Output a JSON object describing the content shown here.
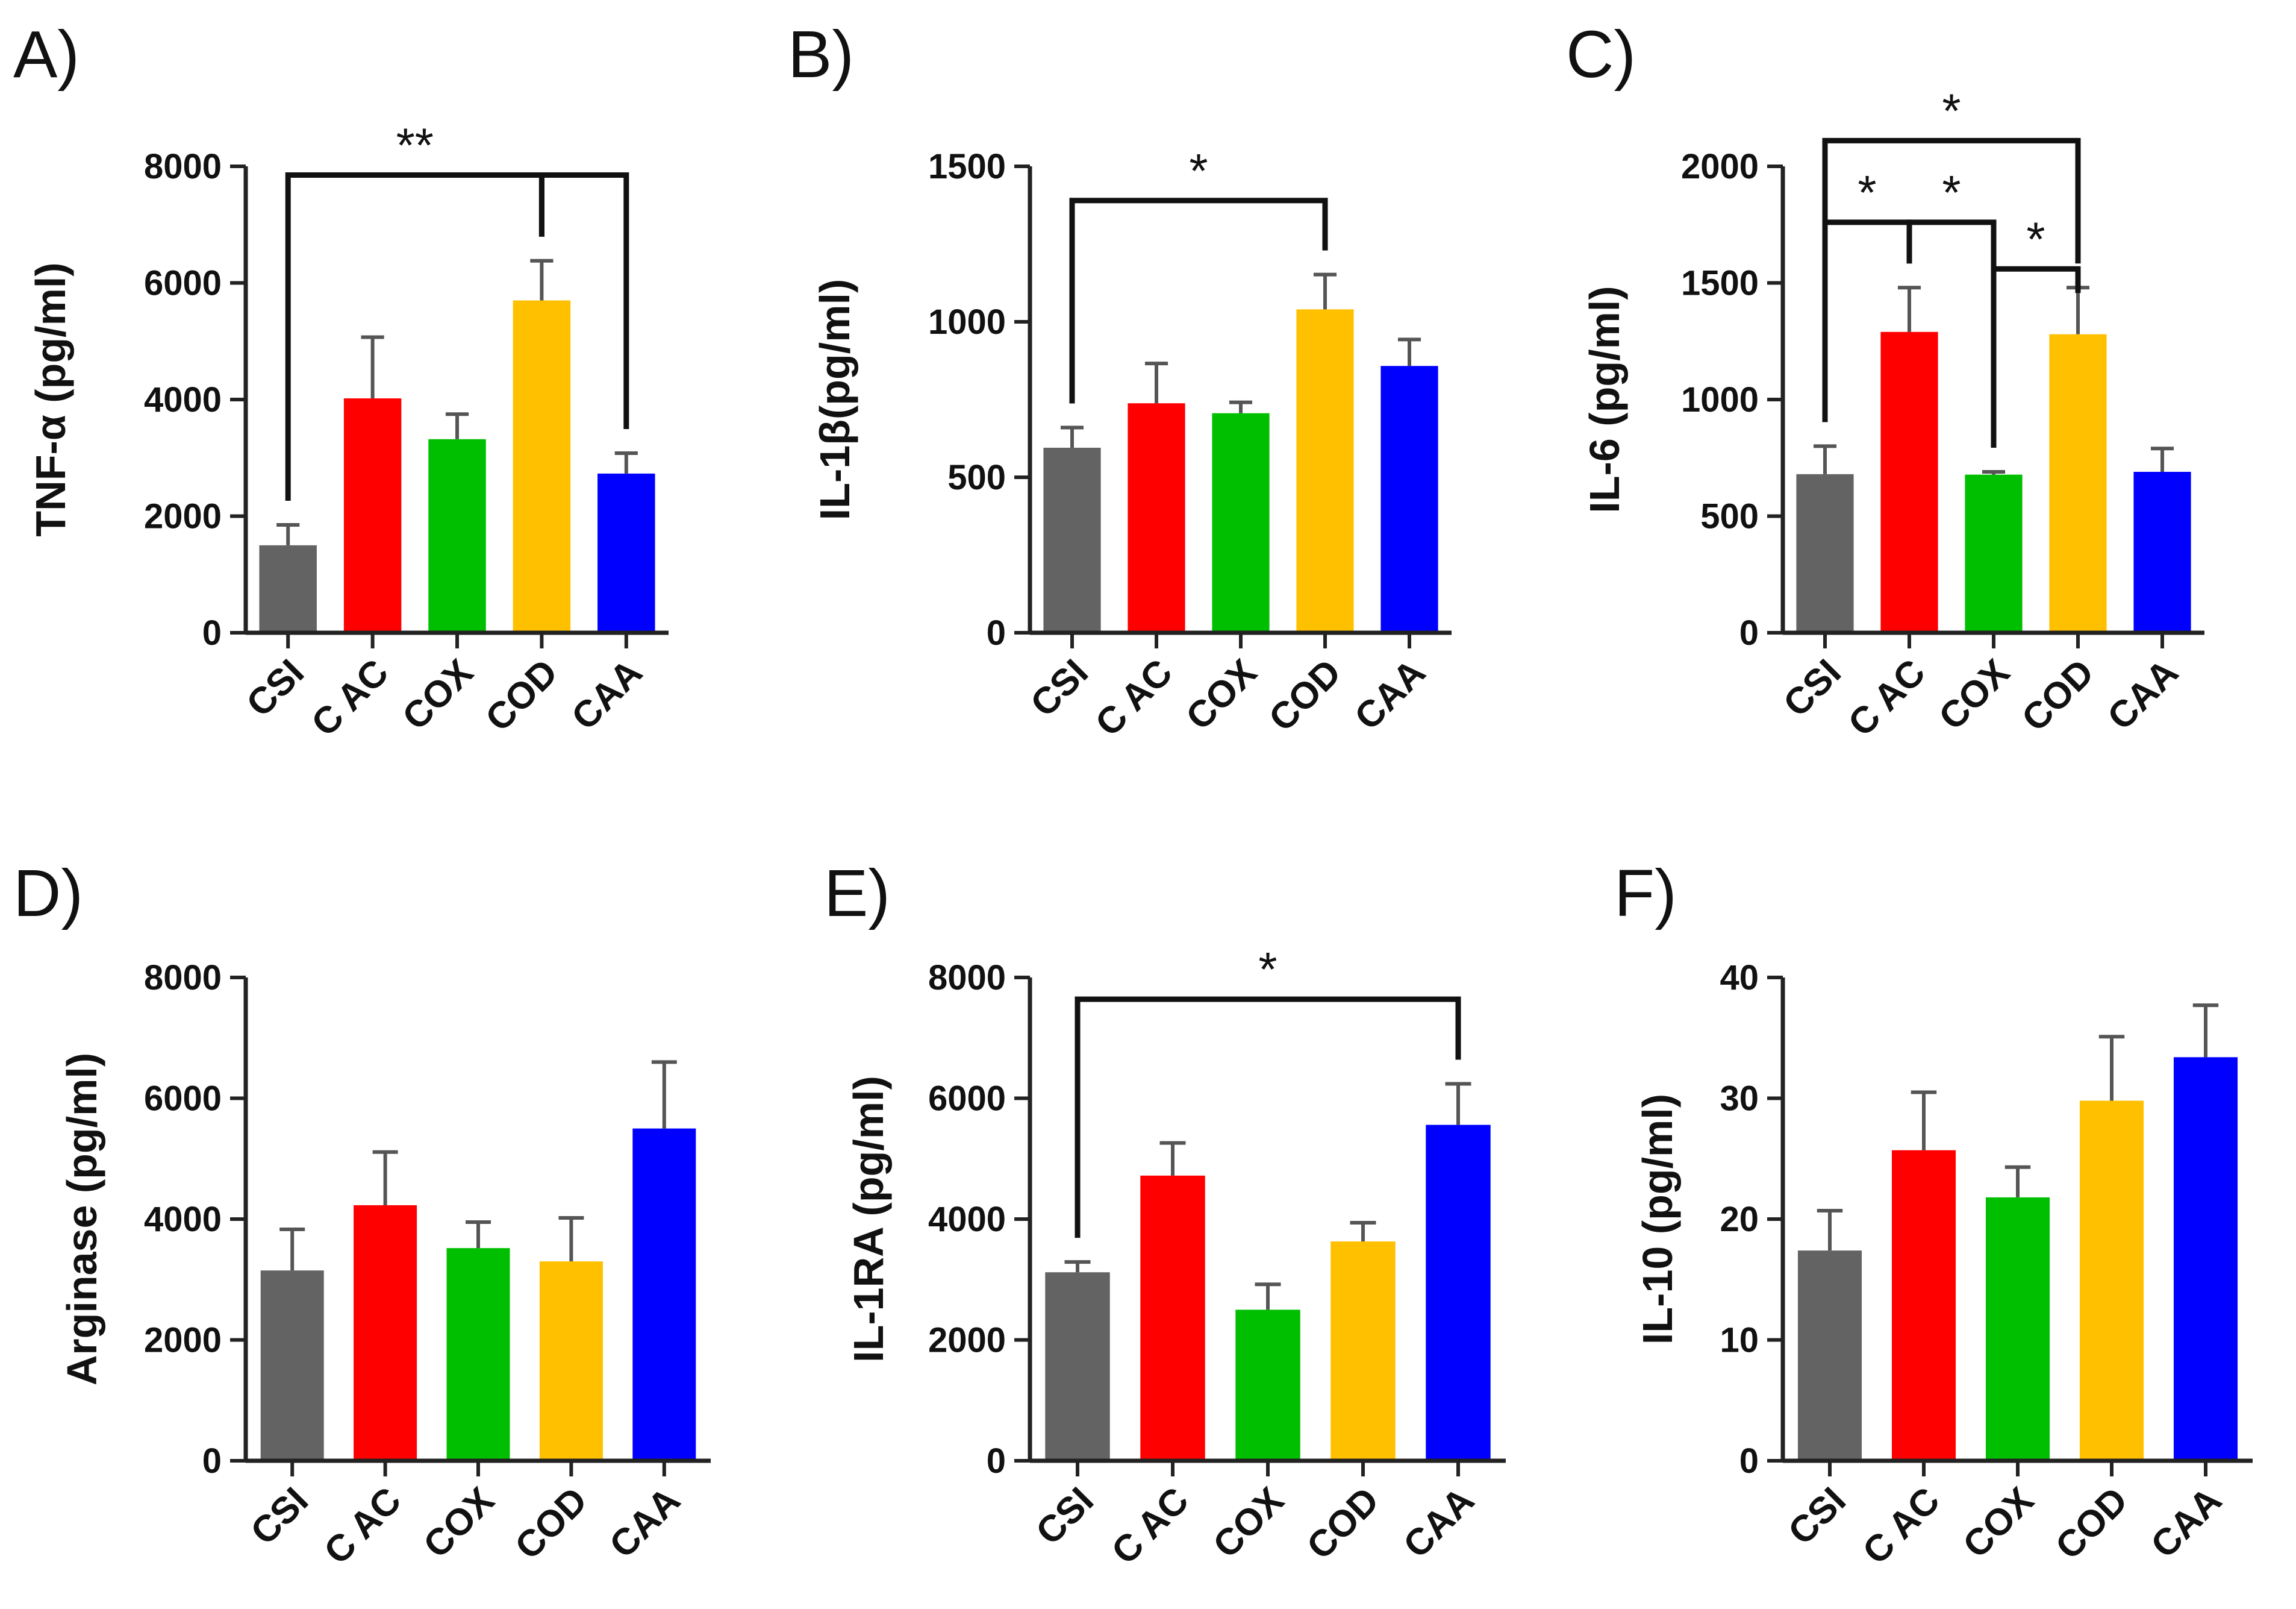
{
  "chart_data": [
    {
      "panel": "A)",
      "type": "bar",
      "ylabel": "TNF-α (pg/ml)",
      "ylim": [
        0,
        8000
      ],
      "yticks": [
        0,
        2000,
        4000,
        6000,
        8000
      ],
      "categories": [
        "CSI",
        "C AC",
        "COX",
        "COD",
        "CAA"
      ],
      "values": [
        1500,
        4020,
        3320,
        5700,
        2730
      ],
      "errors": [
        350,
        1050,
        430,
        680,
        350
      ],
      "colors": [
        "#636363",
        "#ff0000",
        "#00bf00",
        "#ffc000",
        "#0000ff"
      ],
      "significance": [
        {
          "from": 0,
          "to": 3,
          "label": "**",
          "level": 7850
        },
        {
          "from": 3,
          "to": 4,
          "label": "",
          "level": 7850
        }
      ]
    },
    {
      "panel": "B)",
      "type": "bar",
      "ylabel": "IL-1β(pg/ml)",
      "ylim": [
        0,
        1500
      ],
      "yticks": [
        0,
        500,
        1000,
        1500
      ],
      "categories": [
        "CSI",
        "C AC",
        "COX",
        "COD",
        "CAA"
      ],
      "values": [
        595,
        738,
        706,
        1040,
        858
      ],
      "errors": [
        65,
        128,
        35,
        112,
        85
      ],
      "colors": [
        "#636363",
        "#ff0000",
        "#00bf00",
        "#ffc000",
        "#0000ff"
      ],
      "significance": [
        {
          "from": 0,
          "to": 3,
          "label": "*",
          "level": 1390
        }
      ]
    },
    {
      "panel": "C)",
      "type": "bar",
      "ylabel": "IL-6 (pg/ml)",
      "ylim": [
        0,
        2000
      ],
      "yticks": [
        0,
        500,
        1000,
        1500,
        2000
      ],
      "categories": [
        "CSI",
        "C AC",
        "COX",
        "COD",
        "CAA"
      ],
      "values": [
        680,
        1290,
        678,
        1280,
        690
      ],
      "errors": [
        120,
        190,
        12,
        200,
        100
      ],
      "colors": [
        "#636363",
        "#ff0000",
        "#00bf00",
        "#ffc000",
        "#0000ff"
      ],
      "significance": [
        {
          "from": 0,
          "to": 3,
          "label": "*",
          "level": 2110
        },
        {
          "from": 0,
          "to": 1,
          "label": "*",
          "level": 1760
        },
        {
          "from": 1,
          "to": 2,
          "label": "*",
          "level": 1760
        },
        {
          "from": 2,
          "to": 3,
          "label": "*",
          "level": 1560
        }
      ]
    },
    {
      "panel": "D)",
      "type": "bar",
      "ylabel": "Arginase (pg/ml)",
      "ylim": [
        0,
        8000
      ],
      "yticks": [
        0,
        2000,
        4000,
        6000,
        8000
      ],
      "categories": [
        "CSI",
        "C AC",
        "COX",
        "COD",
        "CAA"
      ],
      "values": [
        3150,
        4230,
        3520,
        3300,
        5500
      ],
      "errors": [
        680,
        880,
        430,
        720,
        1100
      ],
      "colors": [
        "#636363",
        "#ff0000",
        "#00bf00",
        "#ffc000",
        "#0000ff"
      ],
      "significance": []
    },
    {
      "panel": "E)",
      "type": "bar",
      "ylabel": "IL-1RA (pg/ml)",
      "ylim": [
        0,
        8000
      ],
      "yticks": [
        0,
        2000,
        4000,
        6000,
        8000
      ],
      "categories": [
        "CSI",
        "C AC",
        "COX",
        "COD",
        "CAA"
      ],
      "values": [
        3120,
        4720,
        2500,
        3630,
        5560
      ],
      "errors": [
        170,
        540,
        420,
        310,
        680
      ],
      "colors": [
        "#636363",
        "#ff0000",
        "#00bf00",
        "#ffc000",
        "#0000ff"
      ],
      "significance": [
        {
          "from": 0,
          "to": 4,
          "label": "*",
          "level": 7640
        }
      ]
    },
    {
      "panel": "F)",
      "type": "bar",
      "ylabel": "IL-10 (pg/ml)",
      "ylim": [
        0,
        40
      ],
      "yticks": [
        0,
        10,
        20,
        30,
        40
      ],
      "categories": [
        "CSI",
        "C AC",
        "COX",
        "COD",
        "CAA"
      ],
      "values": [
        17.4,
        25.7,
        21.8,
        29.8,
        33.4
      ],
      "errors": [
        3.3,
        4.8,
        2.5,
        5.3,
        4.3
      ],
      "colors": [
        "#636363",
        "#ff0000",
        "#00bf00",
        "#ffc000",
        "#0000ff"
      ],
      "significance": []
    }
  ]
}
